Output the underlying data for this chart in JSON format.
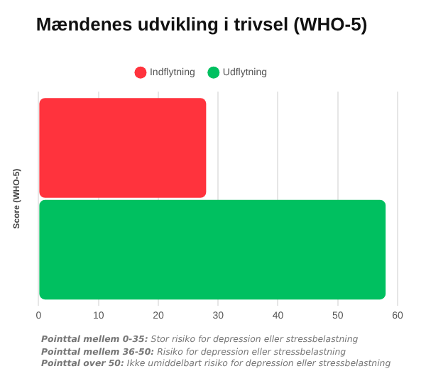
{
  "chart_data": {
    "type": "bar",
    "orientation": "horizontal",
    "title": "Mændenes udvikling i trivsel (WHO-5)",
    "ylabel": "Score (WHO-5)",
    "categories": [
      null
    ],
    "series": [
      {
        "name": "Indflytning",
        "color": "#ff333d",
        "values": [
          28
        ]
      },
      {
        "name": "Udflytning",
        "color": "#00c060",
        "values": [
          58
        ]
      }
    ],
    "xlim": [
      0,
      60
    ],
    "xticks": [
      0,
      10,
      20,
      30,
      40,
      50,
      60
    ],
    "grid": "x",
    "legend": "top",
    "annotations": [
      "Pointtal mellem 0-35: Stor risiko for depression eller stressbelastning",
      "Pointtal mellem 36-50: Risiko for depression eller stressbelastning",
      "Pointtal over 50: Ikke umiddelbart risiko for depression eller stressbelastning"
    ]
  }
}
